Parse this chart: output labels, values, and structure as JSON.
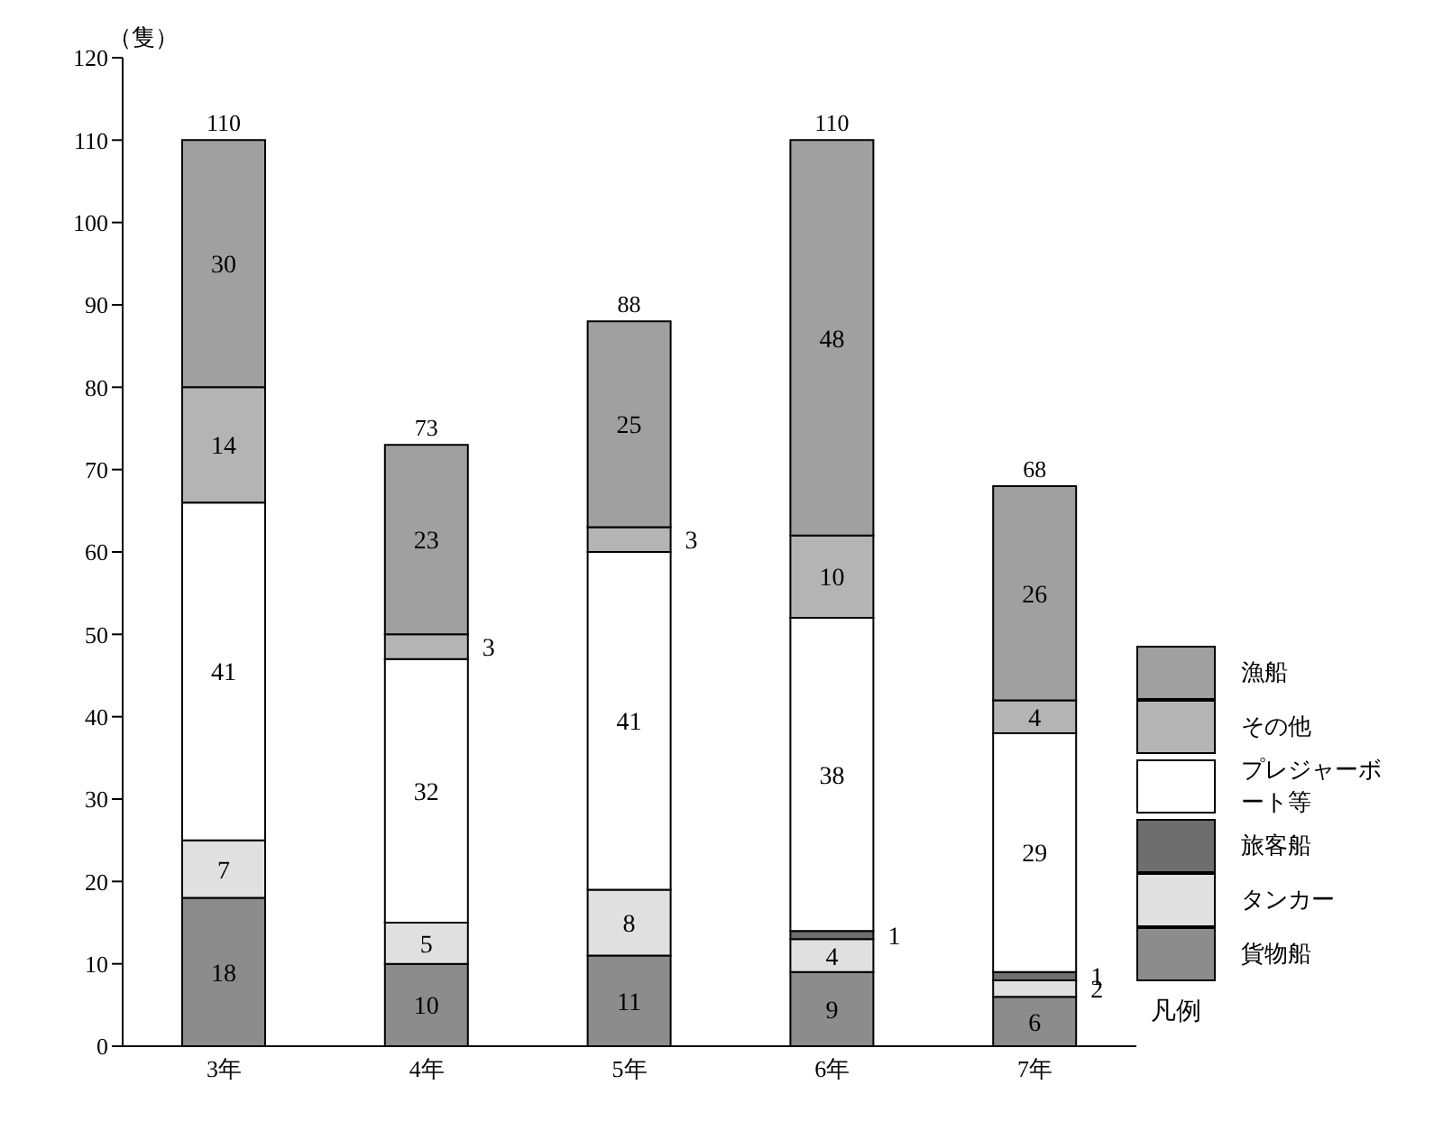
{
  "chart_data": {
    "type": "bar",
    "stacked": true,
    "ylabel": "（隻）",
    "legend_title": "凡例",
    "categories": [
      "3年",
      "4年",
      "5年",
      "6年",
      "7年"
    ],
    "series": [
      {
        "name": "貨物船",
        "color": "#8c8c8c",
        "values": [
          18,
          10,
          11,
          9,
          6
        ]
      },
      {
        "name": "タンカー",
        "color": "#e0e0e0",
        "values": [
          7,
          5,
          8,
          4,
          2
        ]
      },
      {
        "name": "旅客船",
        "color": "#6e6e6e",
        "values": [
          null,
          null,
          null,
          1,
          1
        ]
      },
      {
        "name": "プレジャーボート等",
        "color": "#ffffff",
        "values": [
          41,
          32,
          41,
          38,
          29
        ]
      },
      {
        "name": "その他",
        "color": "#b4b4b4",
        "values": [
          14,
          3,
          3,
          10,
          4
        ]
      },
      {
        "name": "漁船",
        "color": "#a0a0a0",
        "values": [
          30,
          23,
          25,
          48,
          26
        ]
      }
    ],
    "totals": [
      "110",
      "73",
      "88",
      "110",
      "68"
    ],
    "ylim": [
      0,
      120
    ],
    "yticks": [
      0,
      10,
      20,
      30,
      40,
      50,
      60,
      70,
      80,
      90,
      100,
      110,
      120
    ],
    "data_labels": true,
    "legend": "right",
    "grid": false
  }
}
